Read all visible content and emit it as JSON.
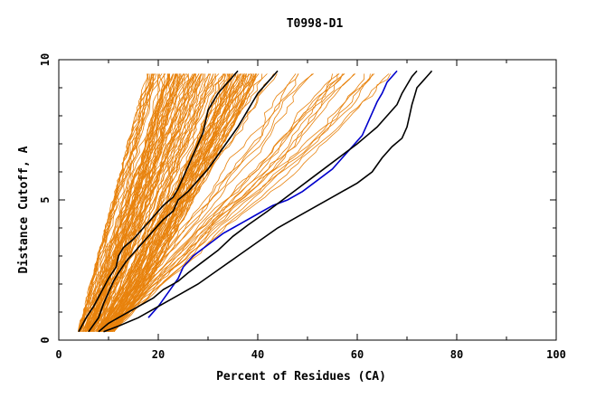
{
  "chart_data": {
    "type": "line",
    "title": "T0998-D1",
    "xlabel": "Percent of Residues (CA)",
    "ylabel": "Distance Cutoff, A",
    "xlim": [
      0,
      100
    ],
    "ylim": [
      0,
      10
    ],
    "xticks": [
      "0",
      "20",
      "40",
      "60",
      "80",
      "100"
    ],
    "yticks": [
      "0",
      "5",
      "10"
    ],
    "grid": false,
    "legend": "none",
    "colors": {
      "bundle": "#e8820c",
      "highlight": "#0000cc",
      "reference": "#000000"
    },
    "bundle_band": {
      "y": [
        0.3,
        1,
        2,
        3,
        4,
        5,
        6,
        7,
        8,
        9,
        9.6
      ],
      "left": [
        4,
        5,
        6.5,
        8,
        9.5,
        11,
        12.5,
        14,
        15.5,
        17,
        18
      ],
      "right": [
        11,
        14,
        18,
        21,
        24,
        27,
        30,
        33,
        36,
        38.5,
        40
      ]
    },
    "spread_band": {
      "y": [
        0.3,
        1,
        2,
        3,
        4,
        5,
        6,
        7,
        8,
        9,
        9.6
      ],
      "left": [
        8,
        10,
        13,
        16,
        19,
        22,
        25,
        28,
        31,
        34,
        36
      ],
      "right": [
        11,
        15,
        21,
        28,
        34,
        41,
        48,
        55,
        60,
        65,
        68
      ]
    },
    "series": [
      {
        "color": "#000000",
        "x": [
          4,
          5.5,
          7,
          8.5,
          10,
          11.5,
          12,
          13,
          15,
          17,
          19,
          21,
          23,
          24,
          25,
          26,
          27,
          28,
          29,
          29.5,
          30,
          31,
          32,
          33,
          34,
          35,
          36
        ],
        "y": [
          0.3,
          0.8,
          1.2,
          1.7,
          2.2,
          2.6,
          3.0,
          3.3,
          3.6,
          4.0,
          4.4,
          4.8,
          5.1,
          5.4,
          5.8,
          6.2,
          6.6,
          7.0,
          7.4,
          7.8,
          8.2,
          8.5,
          8.8,
          9.0,
          9.2,
          9.4,
          9.6
        ]
      },
      {
        "color": "#000000",
        "x": [
          6,
          8,
          9,
          10,
          11,
          12,
          13.5,
          15,
          17,
          19,
          21,
          23,
          24,
          26,
          28,
          30,
          32,
          34,
          36,
          37,
          38,
          39,
          40,
          41,
          42,
          43,
          44
        ],
        "y": [
          0.3,
          0.8,
          1.3,
          1.7,
          2.1,
          2.4,
          2.8,
          3.1,
          3.5,
          3.9,
          4.3,
          4.6,
          5.0,
          5.3,
          5.7,
          6.1,
          6.6,
          7.1,
          7.6,
          7.9,
          8.2,
          8.5,
          8.8,
          9.0,
          9.2,
          9.4,
          9.6
        ]
      },
      {
        "color": "#0000cc",
        "x": [
          18,
          20,
          22,
          24,
          25,
          27,
          30,
          33,
          35,
          37,
          40,
          43,
          46,
          49,
          52,
          55,
          57,
          59,
          61,
          62,
          63,
          64,
          65,
          65.5,
          66,
          67,
          68
        ],
        "y": [
          0.8,
          1.2,
          1.7,
          2.2,
          2.6,
          3.0,
          3.4,
          3.8,
          4.0,
          4.2,
          4.5,
          4.8,
          5.0,
          5.3,
          5.7,
          6.1,
          6.5,
          6.9,
          7.3,
          7.7,
          8.1,
          8.5,
          8.8,
          9.0,
          9.2,
          9.4,
          9.6
        ]
      },
      {
        "color": "#000000",
        "x": [
          8,
          10,
          13,
          16,
          19,
          21,
          24,
          26,
          29,
          32,
          35,
          38,
          42,
          45,
          48,
          51,
          54,
          57,
          60,
          62,
          64,
          66,
          68,
          69,
          70,
          71,
          72
        ],
        "y": [
          0.3,
          0.6,
          0.9,
          1.2,
          1.5,
          1.8,
          2.1,
          2.4,
          2.8,
          3.2,
          3.7,
          4.1,
          4.6,
          5.0,
          5.4,
          5.8,
          6.2,
          6.6,
          7.0,
          7.3,
          7.6,
          8.0,
          8.4,
          8.8,
          9.1,
          9.4,
          9.6
        ]
      },
      {
        "color": "#000000",
        "x": [
          9,
          12,
          16,
          20,
          24,
          28,
          32,
          36,
          40,
          44,
          48,
          52,
          56,
          60,
          63,
          65,
          67,
          69,
          70,
          70.5,
          71,
          71.5,
          72,
          73,
          74,
          74.5,
          75
        ],
        "y": [
          0.3,
          0.5,
          0.8,
          1.2,
          1.6,
          2.0,
          2.5,
          3.0,
          3.5,
          4.0,
          4.4,
          4.8,
          5.2,
          5.6,
          6.0,
          6.5,
          6.9,
          7.2,
          7.6,
          8.0,
          8.4,
          8.7,
          9.0,
          9.2,
          9.4,
          9.5,
          9.6
        ]
      }
    ]
  }
}
